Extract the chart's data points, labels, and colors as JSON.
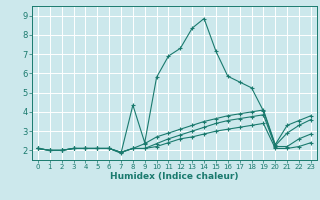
{
  "xlabel": "Humidex (Indice chaleur)",
  "xlim": [
    -0.5,
    23.5
  ],
  "ylim": [
    1.5,
    9.5
  ],
  "xticks": [
    0,
    1,
    2,
    3,
    4,
    5,
    6,
    7,
    8,
    9,
    10,
    11,
    12,
    13,
    14,
    15,
    16,
    17,
    18,
    19,
    20,
    21,
    22,
    23
  ],
  "yticks": [
    2,
    3,
    4,
    5,
    6,
    7,
    8,
    9
  ],
  "bg_color": "#cce8ec",
  "grid_color": "#ffffff",
  "line_color": "#1a7a6e",
  "lines": [
    {
      "x": [
        0,
        1,
        2,
        3,
        4,
        5,
        6,
        7,
        8,
        9,
        10,
        11,
        12,
        13,
        14,
        15,
        16,
        17,
        18,
        19,
        20,
        21,
        22,
        23
      ],
      "y": [
        2.1,
        2.0,
        2.0,
        2.1,
        2.1,
        2.1,
        2.1,
        1.85,
        4.35,
        2.4,
        5.8,
        6.9,
        7.3,
        8.35,
        8.85,
        7.15,
        5.85,
        5.55,
        5.25,
        4.05,
        2.25,
        2.9,
        3.3,
        3.6
      ]
    },
    {
      "x": [
        0,
        1,
        2,
        3,
        4,
        5,
        6,
        7,
        8,
        9,
        10,
        11,
        12,
        13,
        14,
        15,
        16,
        17,
        18,
        19,
        20,
        21,
        22,
        23
      ],
      "y": [
        2.1,
        2.0,
        2.0,
        2.1,
        2.1,
        2.1,
        2.1,
        1.9,
        2.1,
        2.35,
        2.7,
        2.9,
        3.1,
        3.3,
        3.5,
        3.65,
        3.8,
        3.9,
        4.0,
        4.1,
        2.3,
        3.3,
        3.55,
        3.8
      ]
    },
    {
      "x": [
        0,
        1,
        2,
        3,
        4,
        5,
        6,
        7,
        8,
        9,
        10,
        11,
        12,
        13,
        14,
        15,
        16,
        17,
        18,
        19,
        20,
        21,
        22,
        23
      ],
      "y": [
        2.1,
        2.0,
        2.0,
        2.1,
        2.1,
        2.1,
        2.1,
        1.9,
        2.1,
        2.1,
        2.35,
        2.6,
        2.8,
        3.0,
        3.2,
        3.4,
        3.55,
        3.65,
        3.75,
        3.85,
        2.2,
        2.2,
        2.6,
        2.85
      ]
    },
    {
      "x": [
        0,
        1,
        2,
        3,
        4,
        5,
        6,
        7,
        8,
        9,
        10,
        11,
        12,
        13,
        14,
        15,
        16,
        17,
        18,
        19,
        20,
        21,
        22,
        23
      ],
      "y": [
        2.1,
        2.0,
        2.0,
        2.1,
        2.1,
        2.1,
        2.1,
        1.9,
        2.1,
        2.1,
        2.2,
        2.4,
        2.6,
        2.7,
        2.85,
        3.0,
        3.1,
        3.2,
        3.3,
        3.4,
        2.1,
        2.1,
        2.2,
        2.4
      ]
    }
  ]
}
